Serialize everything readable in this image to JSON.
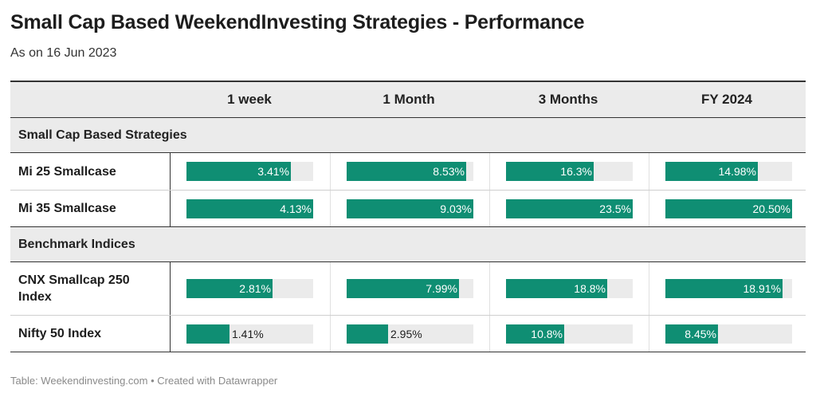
{
  "title": "Small Cap Based WeekendInvesting Strategies - Performance",
  "subtitle": "As on 16 Jun 2023",
  "footer": "Table: Weekendinvesting.com • Created with Datawrapper",
  "colors": {
    "bar": "#0f8e73",
    "track": "#ebebeb",
    "header_bg": "#ebebeb"
  },
  "chart_data": {
    "type": "table",
    "columns": [
      "1 week",
      "1 Month",
      "3 Months",
      "FY 2024"
    ],
    "groups": [
      {
        "name": "Small Cap Based Strategies",
        "rows": [
          {
            "name": "Mi 25 Smallcase",
            "values": [
              3.41,
              8.53,
              16.3,
              14.98
            ],
            "labels": [
              "3.41%",
              "8.53%",
              "16.3%",
              "14.98%"
            ]
          },
          {
            "name": "Mi 35 Smallcase",
            "values": [
              4.13,
              9.03,
              23.5,
              20.5
            ],
            "labels": [
              "4.13%",
              "9.03%",
              "23.5%",
              "20.50%"
            ]
          }
        ]
      },
      {
        "name": "Benchmark Indices",
        "rows": [
          {
            "name": "CNX Smallcap 250 Index",
            "values": [
              2.81,
              7.99,
              18.8,
              18.91
            ],
            "labels": [
              "2.81%",
              "7.99%",
              "18.8%",
              "18.91%"
            ]
          },
          {
            "name": "Nifty 50 Index",
            "values": [
              1.41,
              2.95,
              10.8,
              8.45
            ],
            "labels": [
              "1.41%",
              "2.95%",
              "10.8%",
              "8.45%"
            ]
          }
        ]
      }
    ],
    "column_max": [
      4.13,
      9.03,
      23.5,
      20.5
    ]
  }
}
